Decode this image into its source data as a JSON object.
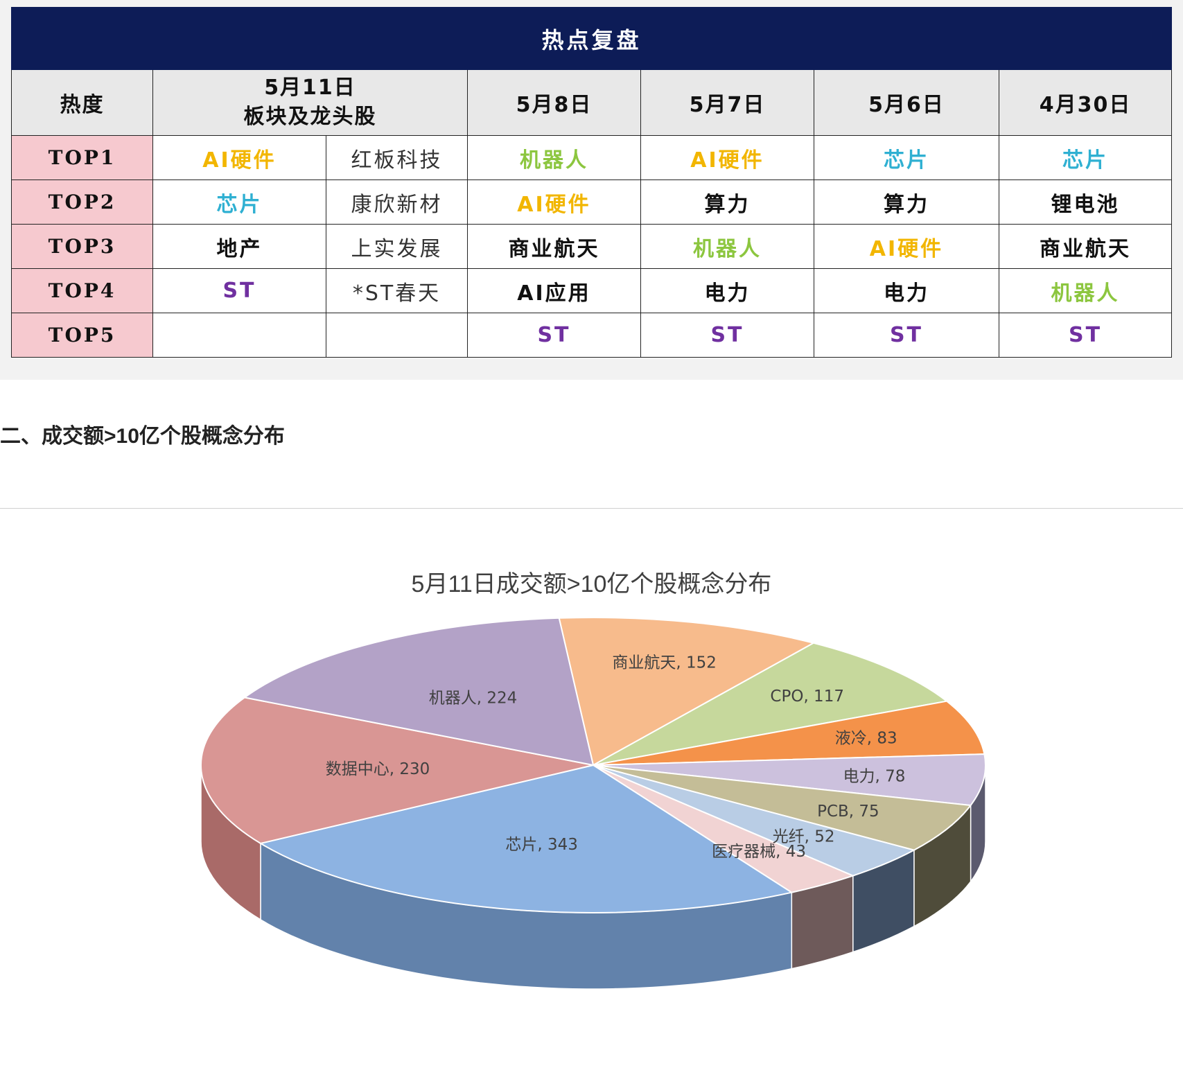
{
  "table": {
    "banner": "热点复盘",
    "corner_header": "热度",
    "date_headers": {
      "d511_line1": "5月11日",
      "d511_line2": "板块及龙头股",
      "d58": "5月8日",
      "d57": "5月7日",
      "d56": "5月6日",
      "d430": "4月30日"
    },
    "rows": [
      {
        "rank": "TOP1",
        "s511": "AI硬件",
        "stock": "红板科技",
        "s58": "机器人",
        "s57": "AI硬件",
        "s56": "芯片",
        "s430": "芯片"
      },
      {
        "rank": "TOP2",
        "s511": "芯片",
        "stock": "康欣新材",
        "s58": "AI硬件",
        "s57": "算力",
        "s56": "算力",
        "s430": "锂电池"
      },
      {
        "rank": "TOP3",
        "s511": "地产",
        "stock": "上实发展",
        "s58": "商业航天",
        "s57": "机器人",
        "s56": "AI硬件",
        "s430": "商业航天"
      },
      {
        "rank": "TOP4",
        "s511": "ST",
        "stock": "*ST春天",
        "s58": "AI应用",
        "s57": "电力",
        "s56": "电力",
        "s430": "机器人"
      },
      {
        "rank": "TOP5",
        "s511": "",
        "stock": "",
        "s58": "ST",
        "s57": "ST",
        "s56": "ST",
        "s430": "ST"
      }
    ],
    "colors": {
      "header_bg": "#0d1c57",
      "rank_bg": "#f6c9cf",
      "AI硬件": "#f2b600",
      "芯片": "#2fb0d2",
      "机器人": "#8cc63f",
      "ST": "#7030a0",
      "default": "#111111"
    }
  },
  "section_heading": "二、成交额>10亿个股概念分布",
  "chart_data": {
    "type": "pie",
    "title": "5月11日成交额>10亿个股概念分布",
    "start_angle_deg": 95,
    "slices": [
      {
        "name": "商业航天",
        "value": 152,
        "label": "商业航天, 152",
        "color": "#f7bb8c",
        "side": "#c58f66"
      },
      {
        "name": "CPO",
        "value": 117,
        "label": "CPO, 117",
        "color": "#c6d89c",
        "side": "#8fa36a"
      },
      {
        "name": "液冷",
        "value": 83,
        "label": "液冷, 83",
        "color": "#f4924a",
        "side": "#b8642a"
      },
      {
        "name": "电力",
        "value": 78,
        "label": "电力, 78",
        "color": "#ccc1dd",
        "side": "#5b5a6e"
      },
      {
        "name": "PCB",
        "value": 75,
        "label": "PCB, 75",
        "color": "#c4bd97",
        "side": "#4f4c3a"
      },
      {
        "name": "光纤",
        "value": 52,
        "label": "光纤, 52",
        "color": "#b9cde5",
        "side": "#3f4e63"
      },
      {
        "name": "医疗器械",
        "value": 43,
        "label": "医疗器械, 43",
        "color": "#f1d3d3",
        "side": "#6e5a5a"
      },
      {
        "name": "芯片",
        "value": 343,
        "label": "芯片, 343",
        "color": "#8db3e2",
        "side": "#6282ab"
      },
      {
        "name": "数据中心",
        "value": 230,
        "label": "数据中心, 230",
        "color": "#d99694",
        "side": "#a96a68"
      },
      {
        "name": "机器人",
        "value": 224,
        "label": "机器人, 224",
        "color": "#b3a2c7",
        "side": "#7f7095"
      }
    ]
  }
}
